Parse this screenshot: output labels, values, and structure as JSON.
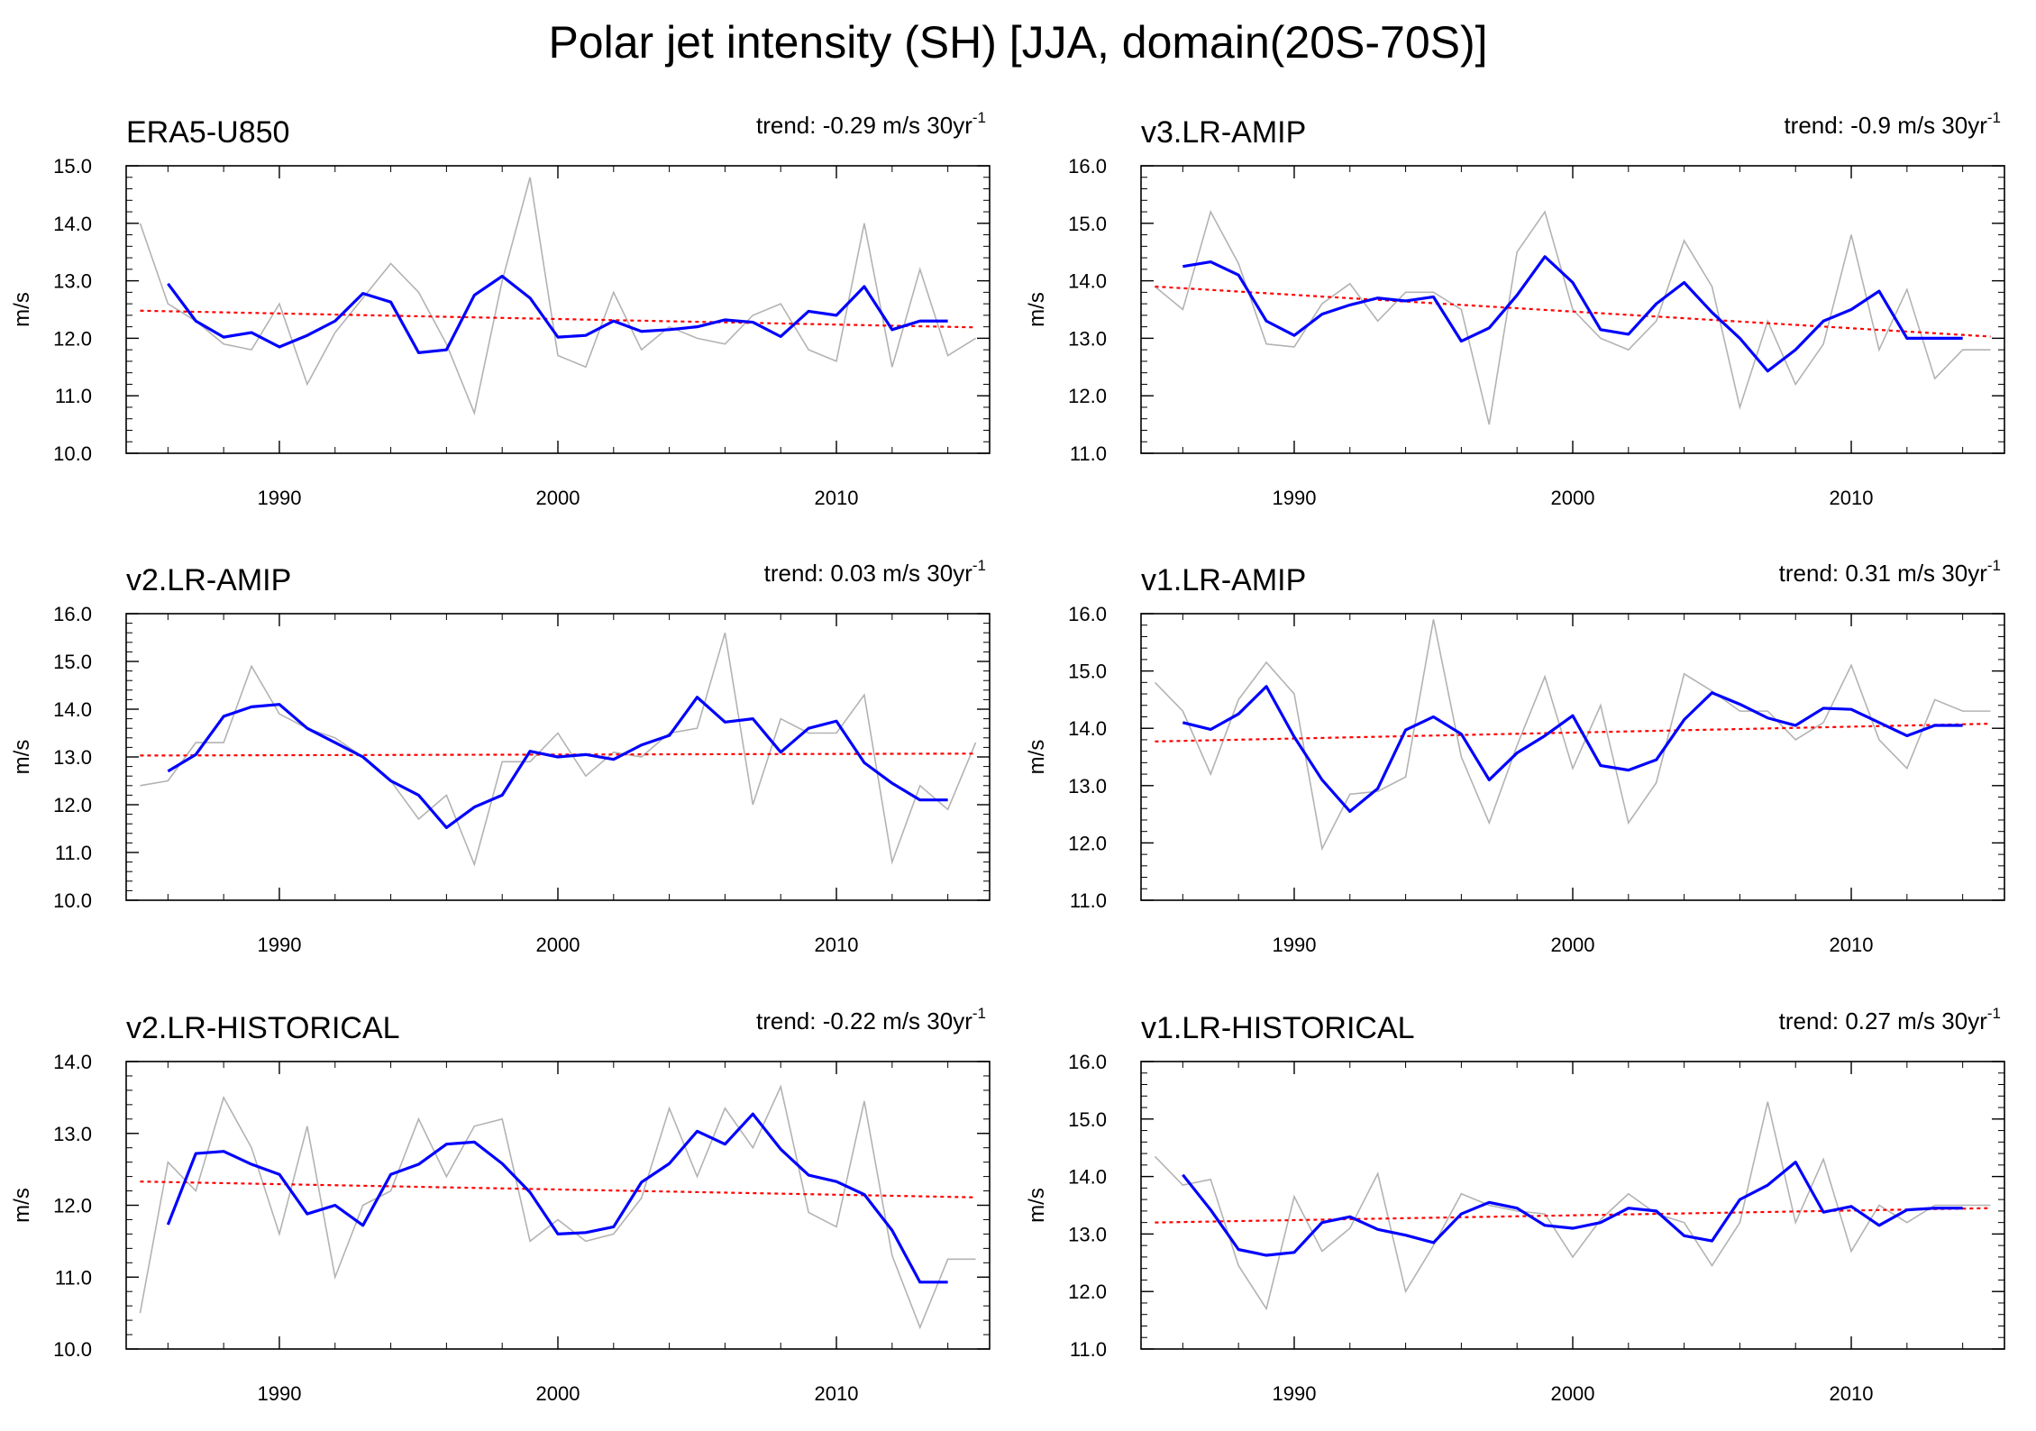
{
  "title": "Polar jet intensity (SH) [JJA, domain(20S-70S)]",
  "colors": {
    "raw": "#b3b3b3",
    "smooth": "#0000ff",
    "trend": "#ff0000"
  },
  "chart_data": [
    {
      "type": "line",
      "title": "ERA5-U850",
      "trend_label": "trend: -0.29 m/s 30yr",
      "trend_sup": "-1",
      "ylabel": "m/s",
      "xlim": [
        1984.5,
        2015.5
      ],
      "ylim": [
        10,
        15
      ],
      "yticks": [
        "10.0",
        "11.0",
        "12.0",
        "13.0",
        "14.0",
        "15.0"
      ],
      "xticks": [
        "1990",
        "2000",
        "2010"
      ],
      "years": [
        1985,
        1986,
        1987,
        1988,
        1989,
        1990,
        1991,
        1992,
        1993,
        1994,
        1995,
        1996,
        1997,
        1998,
        1999,
        2000,
        2001,
        2002,
        2003,
        2004,
        2005,
        2006,
        2007,
        2008,
        2009,
        2010,
        2011,
        2012,
        2013,
        2014,
        2015
      ],
      "series": [
        {
          "name": "raw",
          "values": [
            14.0,
            12.6,
            12.3,
            11.9,
            11.8,
            12.6,
            11.2,
            12.1,
            12.7,
            13.3,
            12.8,
            11.9,
            10.7,
            13.0,
            14.8,
            11.7,
            11.5,
            12.8,
            11.8,
            12.2,
            12.0,
            11.9,
            12.4,
            12.6,
            11.8,
            11.6,
            14.0,
            11.5,
            13.2,
            11.7,
            12.0
          ]
        },
        {
          "name": "smoothed",
          "years": [
            1986,
            1987,
            1988,
            1989,
            1990,
            1991,
            1992,
            1993,
            1994,
            1995,
            1996,
            1997,
            1998,
            1999,
            2000,
            2001,
            2002,
            2003,
            2004,
            2005,
            2006,
            2007,
            2008,
            2009,
            2010,
            2011,
            2012,
            2013,
            2014
          ],
          "values": [
            12.95,
            12.3,
            12.02,
            12.1,
            11.85,
            12.05,
            12.3,
            12.78,
            12.63,
            11.75,
            11.8,
            12.75,
            13.08,
            12.7,
            12.02,
            12.05,
            12.3,
            12.12,
            12.15,
            12.2,
            12.32,
            12.28,
            12.03,
            12.47,
            12.4,
            12.9,
            12.15,
            12.3,
            12.3
          ]
        },
        {
          "name": "trend",
          "values": [
            12.48,
            12.19
          ]
        }
      ]
    },
    {
      "type": "line",
      "title": "v3.LR-AMIP",
      "trend_label": "trend: -0.9 m/s 30yr",
      "trend_sup": "-1",
      "ylabel": "m/s",
      "xlim": [
        1984.5,
        2015.5
      ],
      "ylim": [
        11,
        16
      ],
      "yticks": [
        "11.0",
        "12.0",
        "13.0",
        "14.0",
        "15.0",
        "16.0"
      ],
      "xticks": [
        "1990",
        "2000",
        "2010"
      ],
      "years": [
        1985,
        1986,
        1987,
        1988,
        1989,
        1990,
        1991,
        1992,
        1993,
        1994,
        1995,
        1996,
        1997,
        1998,
        1999,
        2000,
        2001,
        2002,
        2003,
        2004,
        2005,
        2006,
        2007,
        2008,
        2009,
        2010,
        2011,
        2012,
        2013,
        2014,
        2015
      ],
      "series": [
        {
          "name": "raw",
          "values": [
            13.9,
            13.5,
            15.2,
            14.3,
            12.9,
            12.85,
            13.6,
            13.95,
            13.3,
            13.8,
            13.8,
            13.5,
            11.5,
            14.5,
            15.2,
            13.5,
            13.0,
            12.8,
            13.3,
            14.7,
            13.9,
            11.8,
            13.3,
            12.2,
            12.9,
            14.8,
            12.8,
            13.85,
            12.3,
            12.8,
            12.8
          ]
        },
        {
          "name": "smoothed",
          "years": [
            1986,
            1987,
            1988,
            1989,
            1990,
            1991,
            1992,
            1993,
            1994,
            1995,
            1996,
            1997,
            1998,
            1999,
            2000,
            2001,
            2002,
            2003,
            2004,
            2005,
            2006,
            2007,
            2008,
            2009,
            2010,
            2011,
            2012,
            2013,
            2014
          ],
          "values": [
            14.25,
            14.33,
            14.1,
            13.3,
            13.05,
            13.42,
            13.58,
            13.7,
            13.65,
            13.72,
            12.95,
            13.18,
            13.75,
            14.42,
            13.97,
            13.15,
            13.07,
            13.6,
            13.97,
            13.45,
            13.0,
            12.43,
            12.8,
            13.3,
            13.5,
            13.82,
            13.0,
            13.0,
            13.0
          ]
        },
        {
          "name": "trend",
          "values": [
            13.9,
            13.03
          ]
        }
      ]
    },
    {
      "type": "line",
      "title": "v2.LR-AMIP",
      "trend_label": "trend: 0.03 m/s 30yr",
      "trend_sup": "-1",
      "ylabel": "m/s",
      "xlim": [
        1984.5,
        2015.5
      ],
      "ylim": [
        10,
        16
      ],
      "yticks": [
        "10.0",
        "11.0",
        "12.0",
        "13.0",
        "14.0",
        "15.0",
        "16.0"
      ],
      "xticks": [
        "1990",
        "2000",
        "2010"
      ],
      "years": [
        1985,
        1986,
        1987,
        1988,
        1989,
        1990,
        1991,
        1992,
        1993,
        1994,
        1995,
        1996,
        1997,
        1998,
        1999,
        2000,
        2001,
        2002,
        2003,
        2004,
        2005,
        2006,
        2007,
        2008,
        2009,
        2010,
        2011,
        2012,
        2013,
        2014,
        2015
      ],
      "series": [
        {
          "name": "raw",
          "values": [
            12.4,
            12.5,
            13.3,
            13.3,
            14.9,
            13.9,
            13.6,
            13.4,
            13.0,
            12.5,
            11.7,
            12.2,
            10.75,
            12.9,
            12.9,
            13.5,
            12.6,
            13.1,
            13.0,
            13.5,
            13.6,
            15.6,
            12.0,
            13.8,
            13.5,
            13.5,
            14.3,
            10.8,
            12.4,
            11.9,
            13.3
          ]
        },
        {
          "name": "smoothed",
          "years": [
            1986,
            1987,
            1988,
            1989,
            1990,
            1991,
            1992,
            1993,
            1994,
            1995,
            1996,
            1997,
            1998,
            1999,
            2000,
            2001,
            2002,
            2003,
            2004,
            2005,
            2006,
            2007,
            2008,
            2009,
            2010,
            2011,
            2012,
            2013,
            2014
          ],
          "values": [
            12.7,
            13.05,
            13.85,
            14.05,
            14.1,
            13.6,
            13.3,
            13.0,
            12.5,
            12.2,
            11.52,
            11.95,
            12.2,
            13.12,
            13.0,
            13.05,
            12.95,
            13.25,
            13.45,
            14.25,
            13.73,
            13.8,
            13.1,
            13.6,
            13.75,
            12.88,
            12.45,
            12.1,
            12.1
          ]
        },
        {
          "name": "trend",
          "values": [
            13.03,
            13.07
          ]
        }
      ]
    },
    {
      "type": "line",
      "title": "v1.LR-AMIP",
      "trend_label": "trend: 0.31 m/s 30yr",
      "trend_sup": "-1",
      "ylabel": "m/s",
      "xlim": [
        1984.5,
        2015.5
      ],
      "ylim": [
        11,
        16
      ],
      "yticks": [
        "11.0",
        "12.0",
        "13.0",
        "14.0",
        "15.0",
        "16.0"
      ],
      "xticks": [
        "1990",
        "2000",
        "2010"
      ],
      "years": [
        1985,
        1986,
        1987,
        1988,
        1989,
        1990,
        1991,
        1992,
        1993,
        1994,
        1995,
        1996,
        1997,
        1998,
        1999,
        2000,
        2001,
        2002,
        2003,
        2004,
        2005,
        2006,
        2007,
        2008,
        2009,
        2010,
        2011,
        2012,
        2013,
        2014,
        2015
      ],
      "series": [
        {
          "name": "raw",
          "values": [
            14.8,
            14.3,
            13.2,
            14.5,
            15.15,
            14.6,
            11.9,
            12.85,
            12.9,
            13.15,
            15.9,
            13.5,
            12.35,
            13.7,
            14.9,
            13.3,
            14.4,
            12.35,
            13.05,
            14.95,
            14.65,
            14.3,
            14.3,
            13.8,
            14.1,
            15.1,
            13.8,
            13.3,
            14.5,
            14.3,
            14.3
          ]
        },
        {
          "name": "smoothed",
          "years": [
            1986,
            1987,
            1988,
            1989,
            1990,
            1991,
            1992,
            1993,
            1994,
            1995,
            1996,
            1997,
            1998,
            1999,
            2000,
            2001,
            2002,
            2003,
            2004,
            2005,
            2006,
            2007,
            2008,
            2009,
            2010,
            2011,
            2012,
            2013,
            2014
          ],
          "values": [
            14.1,
            13.98,
            14.25,
            14.73,
            13.85,
            13.1,
            12.55,
            12.95,
            13.97,
            14.2,
            13.9,
            13.1,
            13.57,
            13.87,
            14.22,
            13.35,
            13.27,
            13.45,
            14.15,
            14.62,
            14.42,
            14.18,
            14.05,
            14.35,
            14.33,
            14.1,
            13.87,
            14.05,
            14.05
          ]
        },
        {
          "name": "trend",
          "values": [
            13.77,
            14.08
          ]
        }
      ]
    },
    {
      "type": "line",
      "title": "v2.LR-HISTORICAL",
      "trend_label": "trend: -0.22 m/s 30yr",
      "trend_sup": "-1",
      "ylabel": "m/s",
      "xlim": [
        1984.5,
        2015.5
      ],
      "ylim": [
        10,
        14
      ],
      "yticks": [
        "10.0",
        "11.0",
        "12.0",
        "13.0",
        "14.0"
      ],
      "xticks": [
        "1990",
        "2000",
        "2010"
      ],
      "years": [
        1985,
        1986,
        1987,
        1988,
        1989,
        1990,
        1991,
        1992,
        1993,
        1994,
        1995,
        1996,
        1997,
        1998,
        1999,
        2000,
        2001,
        2002,
        2003,
        2004,
        2005,
        2006,
        2007,
        2008,
        2009,
        2010,
        2011,
        2012,
        2013,
        2014,
        2015
      ],
      "series": [
        {
          "name": "raw",
          "values": [
            10.5,
            12.6,
            12.2,
            13.5,
            12.8,
            11.6,
            13.1,
            11.0,
            12.0,
            12.2,
            13.2,
            12.4,
            13.1,
            13.2,
            11.5,
            11.8,
            11.5,
            11.6,
            12.1,
            13.35,
            12.4,
            13.35,
            12.8,
            13.65,
            11.9,
            11.7,
            13.45,
            11.3,
            10.3,
            11.25,
            11.25
          ]
        },
        {
          "name": "smoothed",
          "years": [
            1986,
            1987,
            1988,
            1989,
            1990,
            1991,
            1992,
            1993,
            1994,
            1995,
            1996,
            1997,
            1998,
            1999,
            2000,
            2001,
            2002,
            2003,
            2004,
            2005,
            2006,
            2007,
            2008,
            2009,
            2010,
            2011,
            2012,
            2013,
            2014
          ],
          "values": [
            11.73,
            12.72,
            12.75,
            12.57,
            12.43,
            11.88,
            12.0,
            11.72,
            12.43,
            12.57,
            12.85,
            12.88,
            12.58,
            12.18,
            11.6,
            11.62,
            11.7,
            12.32,
            12.58,
            13.03,
            12.85,
            13.27,
            12.78,
            12.42,
            12.33,
            12.15,
            11.65,
            10.93,
            10.93
          ]
        },
        {
          "name": "trend",
          "values": [
            12.33,
            12.11
          ]
        }
      ]
    },
    {
      "type": "line",
      "title": "v1.LR-HISTORICAL",
      "trend_label": "trend: 0.27 m/s 30yr",
      "trend_sup": "-1",
      "ylabel": "m/s",
      "xlim": [
        1984.5,
        2015.5
      ],
      "ylim": [
        11,
        16
      ],
      "yticks": [
        "11.0",
        "12.0",
        "13.0",
        "14.0",
        "15.0",
        "16.0"
      ],
      "xticks": [
        "1990",
        "2000",
        "2010"
      ],
      "years": [
        1985,
        1986,
        1987,
        1988,
        1989,
        1990,
        1991,
        1992,
        1993,
        1994,
        1995,
        1996,
        1997,
        1998,
        1999,
        2000,
        2001,
        2002,
        2003,
        2004,
        2005,
        2006,
        2007,
        2008,
        2009,
        2010,
        2011,
        2012,
        2013,
        2014,
        2015
      ],
      "series": [
        {
          "name": "raw",
          "values": [
            14.35,
            13.85,
            13.95,
            12.45,
            11.7,
            13.65,
            12.7,
            13.1,
            14.05,
            12.0,
            12.8,
            13.7,
            13.5,
            13.4,
            13.35,
            12.6,
            13.25,
            13.7,
            13.35,
            13.2,
            12.45,
            13.2,
            15.3,
            13.2,
            14.3,
            12.7,
            13.5,
            13.2,
            13.5,
            13.5,
            13.5
          ]
        },
        {
          "name": "smoothed",
          "years": [
            1986,
            1987,
            1988,
            1989,
            1990,
            1991,
            1992,
            1993,
            1994,
            1995,
            1996,
            1997,
            1998,
            1999,
            2000,
            2001,
            2002,
            2003,
            2004,
            2005,
            2006,
            2007,
            2008,
            2009,
            2010,
            2011,
            2012,
            2013,
            2014
          ],
          "values": [
            14.03,
            13.42,
            12.73,
            12.63,
            12.68,
            13.2,
            13.3,
            13.08,
            12.98,
            12.85,
            13.35,
            13.55,
            13.45,
            13.15,
            13.1,
            13.2,
            13.45,
            13.4,
            12.97,
            12.88,
            13.6,
            13.85,
            14.25,
            13.38,
            13.48,
            13.15,
            13.42,
            13.45,
            13.45
          ]
        },
        {
          "name": "trend",
          "values": [
            13.2,
            13.45
          ]
        }
      ]
    }
  ]
}
